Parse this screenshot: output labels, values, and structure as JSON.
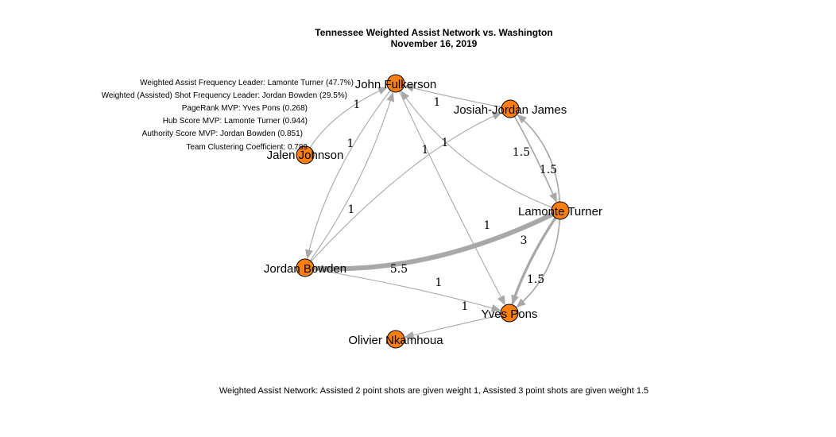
{
  "title_line1": "Tennessee Weighted Assist Network vs. Washington",
  "title_line2": "November 16, 2019",
  "stats": [
    "Weighted Assist Frequency Leader: Lamonte Turner (47.7%)",
    "Weighted (Assisted) Shot Frequency Leader: Jordan Bowden (29.5%)",
    "PageRank MVP: Yves Pons (0.268)",
    "Hub Score MVP: Lamonte Turner (0.944)",
    "Authority Score MVP: Jordan Bowden (0.851)",
    "Team Clustering Coefficient: 0.789"
  ],
  "footer": "Weighted Assist Network: Assisted 2 point shots are given weight 1, Assisted 3 point shots are given weight 1.5",
  "colors": {
    "node_fill": "#ff7f0e",
    "edge": "#a8a8a8"
  },
  "nodes": [
    {
      "id": "fulkerson",
      "name": "John Fulkerson"
    },
    {
      "id": "james",
      "name": "Josiah-Jordan James"
    },
    {
      "id": "johnson",
      "name": "Jalen Johnson"
    },
    {
      "id": "turner",
      "name": "Lamonte Turner"
    },
    {
      "id": "bowden",
      "name": "Jordan Bowden"
    },
    {
      "id": "pons",
      "name": "Yves Pons"
    },
    {
      "id": "nkamhoua",
      "name": "Olivier Nkamhoua"
    }
  ],
  "edges": [
    {
      "from": "turner",
      "to": "bowden",
      "weight": 5.5,
      "label": "5.5"
    },
    {
      "from": "turner",
      "to": "pons",
      "weight": 3,
      "label": "3"
    },
    {
      "from": "james",
      "to": "turner",
      "weight": 1.5,
      "label": "1.5"
    },
    {
      "from": "turner",
      "to": "james",
      "weight": 1.5,
      "label": "1.5"
    },
    {
      "from": "turner",
      "to": "pons",
      "weight": 1.5,
      "label": "1.5"
    },
    {
      "from": "johnson",
      "to": "fulkerson",
      "weight": 1,
      "label": "1"
    },
    {
      "from": "james",
      "to": "fulkerson",
      "weight": 1,
      "label": "1"
    },
    {
      "from": "turner",
      "to": "fulkerson",
      "weight": 1,
      "label": "1"
    },
    {
      "from": "fulkerson",
      "to": "bowden",
      "weight": 1,
      "label": "1"
    },
    {
      "from": "bowden",
      "to": "fulkerson",
      "weight": 1,
      "label": "1"
    },
    {
      "from": "bowden",
      "to": "james",
      "weight": 1,
      "label": "1"
    },
    {
      "from": "fulkerson",
      "to": "pons",
      "weight": 1,
      "label": "1"
    },
    {
      "from": "bowden",
      "to": "pons",
      "weight": 1,
      "label": "1"
    },
    {
      "from": "pons",
      "to": "nkamhoua",
      "weight": 1,
      "label": "1"
    }
  ]
}
